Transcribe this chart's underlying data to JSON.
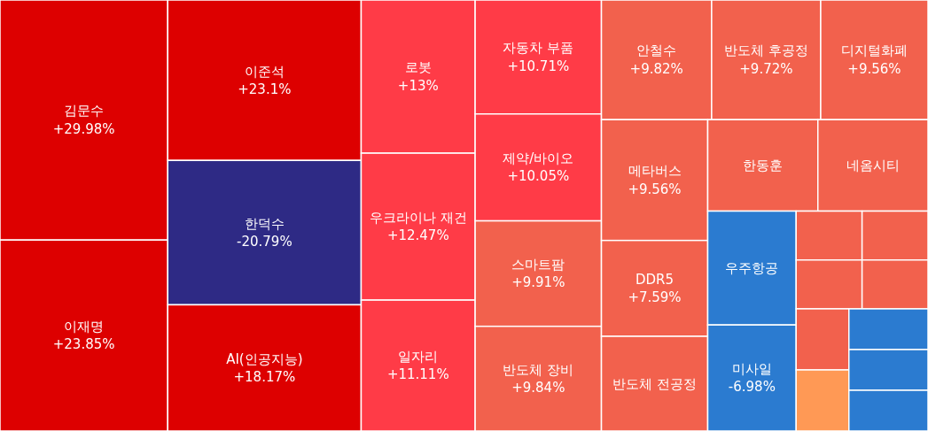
{
  "chart_data": {
    "type": "other",
    "categories": [
      "김문수",
      "이재명",
      "이준석",
      "AI(인공지능)",
      "로봇",
      "우크라이나 재건",
      "일자리",
      "자동차 부품",
      "제약/바이오",
      "스마트팜",
      "반도체 장비",
      "안철수",
      "반도체 후공정",
      "반도체 전공정",
      "디지털화폐",
      "메타버스",
      "한동훈",
      "네옴시티",
      null,
      null,
      null,
      "DDR5",
      null,
      null,
      null,
      "미사일",
      null,
      "우주항공",
      null,
      null,
      "한덕수"
    ],
    "values": [
      29.98,
      23.85,
      23.1,
      18.17,
      13,
      12.47,
      11.11,
      10.71,
      10.05,
      9.91,
      9.84,
      9.82,
      9.72,
      null,
      9.56,
      9.56,
      null,
      null,
      null,
      null,
      null,
      7.59,
      null,
      null,
      null,
      -6.98,
      null,
      null,
      null,
      null,
      -20.79
    ],
    "value_labels": [
      "+29.98%",
      "+23.85%",
      "+23.1%",
      "+18.17%",
      "+13%",
      "+12.47%",
      "+11.11%",
      "+10.71%",
      "+10.05%",
      "+9.91%",
      "+9.84%",
      "+9.82%",
      "+9.72%",
      null,
      "+9.56%",
      "+9.56%",
      null,
      null,
      null,
      null,
      null,
      "+7.59%",
      null,
      null,
      null,
      "-6.98%",
      null,
      null,
      null,
      null,
      "-20.79%"
    ],
    "colors": [
      "#dd0000",
      "#dd0000",
      "#dd0000",
      "#dd0000",
      "#ff3b47",
      "#ff3b47",
      "#ff3b47",
      "#ff3b47",
      "#ff3b47",
      "#f2614d",
      "#f2614d",
      "#f2614d",
      "#f2614d",
      "#f2614d",
      "#f2614d",
      "#f2614d",
      "#f2614d",
      "#f2614d",
      "#f2614d",
      "#f2614d",
      "#f2614d",
      "#f2614d",
      "#f2614d",
      "#f2614d",
      "#ff9955",
      "#2b7bd0",
      "#2b7bd0",
      "#2b7bd0",
      "#2b7bd0",
      "#2b7bd0",
      "#2e2a85"
    ]
  }
}
